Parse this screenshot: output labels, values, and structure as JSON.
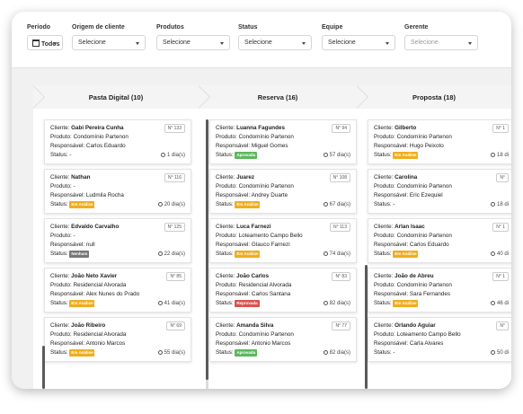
{
  "filters": [
    {
      "label": "Período",
      "value": "Todos",
      "placeholder": false
    },
    {
      "label": "Origem de cliente",
      "value": "Selecione",
      "placeholder": false
    },
    {
      "label": "Produtos",
      "value": "Selecione",
      "placeholder": false
    },
    {
      "label": "Status",
      "value": "Selecione",
      "placeholder": false
    },
    {
      "label": "Equipe",
      "value": "Selecione",
      "placeholder": false
    },
    {
      "label": "Gerente",
      "value": "Selecione",
      "placeholder": true
    }
  ],
  "card_labels": {
    "cliente": "Cliente:",
    "produto": "Produto:",
    "responsavel": "Responsável:",
    "status": "Status:"
  },
  "status_colors": {
    "Em Análise": "#f0ad1e",
    "Aprovada": "#5cb85c",
    "Reprovada": "#d9534f",
    "Nenhum": "#777777"
  },
  "columns": [
    {
      "title": "Pasta Digital (10)",
      "cards": [
        {
          "cliente": "Gabi Pereira Cunha",
          "produto": "Condomínio Partenon",
          "responsavel": "Carlos Eduardo",
          "status_text": "-",
          "badge": "",
          "num": "N° 133",
          "days": "1 dia(s)"
        },
        {
          "cliente": "Nathan",
          "produto": "-",
          "responsavel": "Ludmila Rocha",
          "status_text": "",
          "badge": "Em Análise",
          "num": "N° 116",
          "days": "20 dia(s)"
        },
        {
          "cliente": "Edvaldo Carvalho",
          "produto": "-",
          "responsavel": "null",
          "status_text": "",
          "badge": "Nenhum",
          "num": "N° 125",
          "days": "22 dia(s)"
        },
        {
          "cliente": "João Neto Xavier",
          "produto": "Residencial Alvorada",
          "responsavel": "Alex Nunes do Prado",
          "status_text": "",
          "badge": "Em Análise",
          "num": "N° 85",
          "days": "41 dia(s)"
        },
        {
          "cliente": "João Ribeiro",
          "produto": "Residencial Alvorada",
          "responsavel": "Antonio Marcos",
          "status_text": "",
          "badge": "Em Análise",
          "num": "N° 69",
          "days": "55 dia(s)"
        }
      ]
    },
    {
      "title": "Reserva (16)",
      "cards": [
        {
          "cliente": "Luanna Fagundes",
          "produto": "Condomínio Partenon",
          "responsavel": "Miguel Gomes",
          "status_text": "",
          "badge": "Aprovada",
          "num": "N° 94",
          "days": "57 dia(s)"
        },
        {
          "cliente": "Juarez",
          "produto": "Condomínio Partenon",
          "responsavel": "Andrey Duarte",
          "status_text": "",
          "badge": "Em Análise",
          "num": "N° 108",
          "days": "67 dia(s)"
        },
        {
          "cliente": "Luca Farnezi",
          "produto": "Loteamento Campo Bello",
          "responsavel": "Glauco Farnezi",
          "status_text": "",
          "badge": "Em Análise",
          "num": "N° 113",
          "days": "74 dia(s)"
        },
        {
          "cliente": "João Carlos",
          "produto": "Residencial Alvorada",
          "responsavel": "Carlos Santana",
          "status_text": "",
          "badge": "Reprovada",
          "num": "N° 83",
          "days": "82 dia(s)"
        },
        {
          "cliente": "Amanda Silva",
          "produto": "Condomínio Partenon",
          "responsavel": "Antonio Marcos",
          "status_text": "",
          "badge": "Aprovada",
          "num": "N° 77",
          "days": "82 dia(s)"
        }
      ]
    },
    {
      "title": "Proposta (18)",
      "cards": [
        {
          "cliente": "Gilberto",
          "produto": "Condomínio Partenon",
          "responsavel": "Hugo Peixoto",
          "status_text": "",
          "badge": "Em Análise",
          "num": "N° 1",
          "days": "18 di"
        },
        {
          "cliente": "Carolina",
          "produto": "Condomínio Partenon",
          "responsavel": "Eric Ezequiel",
          "status_text": "-",
          "badge": "",
          "num": "N°",
          "days": "18 di"
        },
        {
          "cliente": "Arlan Isaac",
          "produto": "Condomínio Partenon",
          "responsavel": "Carlos Eduardo",
          "status_text": "",
          "badge": "Em Análise",
          "num": "N° 1",
          "days": "40 di"
        },
        {
          "cliente": "João de Abreu",
          "produto": "Condomínio Partenon",
          "responsavel": "Sara Fernandes",
          "status_text": "",
          "badge": "Em Análise",
          "num": "N° 1",
          "days": "46 di"
        },
        {
          "cliente": "Orlando Aguiar",
          "produto": "Loteamento Campo Bello",
          "responsavel": "Carla Alvares",
          "status_text": "-",
          "badge": "",
          "num": "N°",
          "days": "50 di"
        }
      ]
    }
  ]
}
